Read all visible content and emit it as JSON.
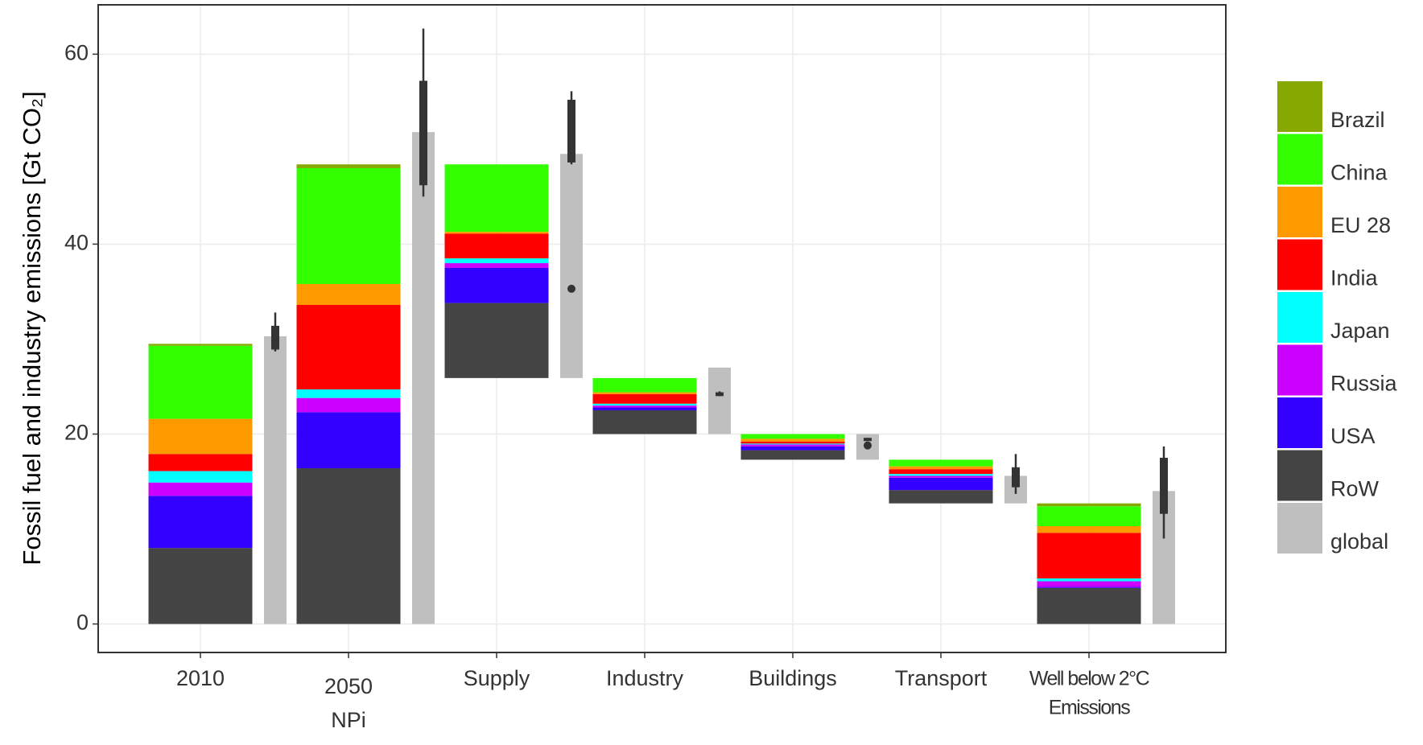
{
  "chart_data": {
    "type": "waterfall",
    "y_label": "Fossil fuel and industry emissions [Gt CO₂]",
    "categories": [
      [
        "2010"
      ],
      [
        "2050",
        "NPi"
      ],
      [
        "Supply"
      ],
      [
        "Industry"
      ],
      [
        "Buildings"
      ],
      [
        "Transport"
      ],
      [
        "Well below 2°C",
        "Emissions"
      ]
    ],
    "series": [
      {
        "name": "Brazil",
        "color": "#86a800",
        "values": [
          0.2,
          0.4,
          0,
          0,
          0,
          0,
          0.3
        ]
      },
      {
        "name": "China",
        "color": "#33ff00",
        "values": [
          7.7,
          12.2,
          7.1,
          1.5,
          0.5,
          0.7,
          2.1
        ]
      },
      {
        "name": "EU 28",
        "color": "#ff9900",
        "values": [
          3.7,
          2.2,
          0.2,
          0.2,
          0.3,
          0.3,
          0.7
        ]
      },
      {
        "name": "India",
        "color": "#ff0000",
        "values": [
          1.8,
          8.9,
          2.6,
          1.0,
          0.2,
          0.5,
          4.8
        ]
      },
      {
        "name": "Japan",
        "color": "#00ffff",
        "values": [
          1.2,
          0.9,
          0.5,
          0.2,
          0.1,
          0.2,
          0.3
        ]
      },
      {
        "name": "Russia",
        "color": "#cc00ff",
        "values": [
          1.4,
          1.5,
          0.5,
          0.2,
          0.2,
          0.2,
          0.6
        ]
      },
      {
        "name": "USA",
        "color": "#3300ff",
        "values": [
          5.5,
          5.9,
          3.7,
          0.3,
          0.4,
          1.3,
          0.1
        ]
      },
      {
        "name": "RoW",
        "color": "#444444",
        "values": [
          8.0,
          16.4,
          7.9,
          2.5,
          1.0,
          1.4,
          3.8
        ]
      }
    ],
    "global": {
      "name": "global",
      "color": "#bfbfbf",
      "values": [
        30.3,
        51.8,
        23.6,
        7.0,
        2.7,
        2.9,
        14.0
      ]
    },
    "ranges": [
      {
        "whisker_low": 28.7,
        "q1": 28.9,
        "q3": 31.4,
        "whisker_high": 32.8,
        "points": []
      },
      {
        "whisker_low": 45.0,
        "q1": 46.2,
        "q3": 57.2,
        "whisker_high": 62.7,
        "points": []
      },
      {
        "whisker_low": 48.4,
        "q1": 48.6,
        "q3": 55.2,
        "whisker_high": 56.1,
        "points": [
          35.3
        ]
      },
      {
        "whisker_low": 24.0,
        "q1": 24.0,
        "q3": 24.4,
        "whisker_high": 24.5,
        "points": []
      },
      {
        "whisker_low": 19.3,
        "q1": 19.3,
        "q3": 19.6,
        "whisker_high": 19.6,
        "points": [
          18.8
        ]
      },
      {
        "whisker_low": 13.7,
        "q1": 14.4,
        "q3": 16.5,
        "whisker_high": 17.9,
        "points": []
      },
      {
        "whisker_low": 9.0,
        "q1": 11.6,
        "q3": 17.5,
        "whisker_high": 18.7,
        "points": []
      }
    ],
    "ylim": [
      -3,
      65.2
    ],
    "yticks": [
      0,
      20,
      40,
      60
    ],
    "grid": true
  }
}
